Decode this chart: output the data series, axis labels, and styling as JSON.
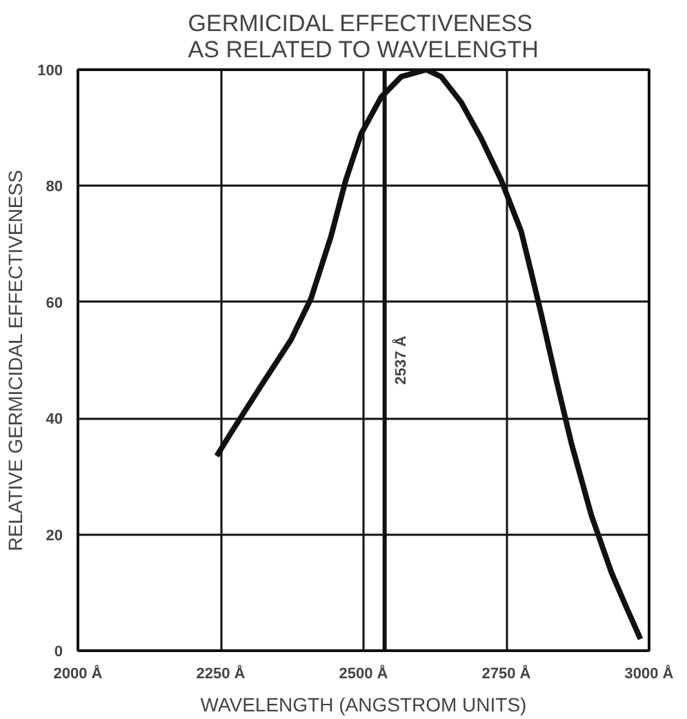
{
  "chart_data": {
    "type": "line",
    "title": "GERMICIDAL EFFECTIVENESS\nAS RELATED TO WAVELENGTH",
    "xlabel": "WAVELENGTH (ANGSTROM UNITS)",
    "ylabel": "RELATIVE GERMICIDAL EFFECTIVENESS",
    "x": [
      2243,
      2268,
      2320,
      2373,
      2408,
      2443,
      2469,
      2496,
      2531,
      2566,
      2610,
      2636,
      2671,
      2706,
      2741,
      2776,
      2794,
      2811,
      2838,
      2864,
      2899,
      2934,
      2961,
      2985
    ],
    "series": [
      {
        "color": "#111111",
        "values": [
          33.5,
          37.5,
          45.5,
          53.5,
          60.6,
          71.3,
          81,
          89,
          95.3,
          98.8,
          100,
          98.8,
          94.4,
          88.2,
          81,
          72.2,
          65,
          58,
          46.4,
          35.7,
          23.3,
          13.5,
          7.3,
          2
        ]
      }
    ],
    "xlim": [
      2000,
      3000
    ],
    "ylim": [
      0,
      100
    ],
    "xticks": [
      {
        "value": 2000,
        "label": "2000 Å"
      },
      {
        "value": 2250,
        "label": "2250 Å"
      },
      {
        "value": 2500,
        "label": "2500 Å"
      },
      {
        "value": 2750,
        "label": "2750 Å"
      },
      {
        "value": 3000,
        "label": "3000 Å"
      }
    ],
    "yticks": [
      0,
      20,
      40,
      60,
      80,
      100
    ],
    "ref_lines": [
      {
        "axis": "x",
        "value": 2537,
        "label": "2537 Å",
        "color": "#111111"
      }
    ],
    "grid": true,
    "marker": "none",
    "line_style": "solid"
  }
}
